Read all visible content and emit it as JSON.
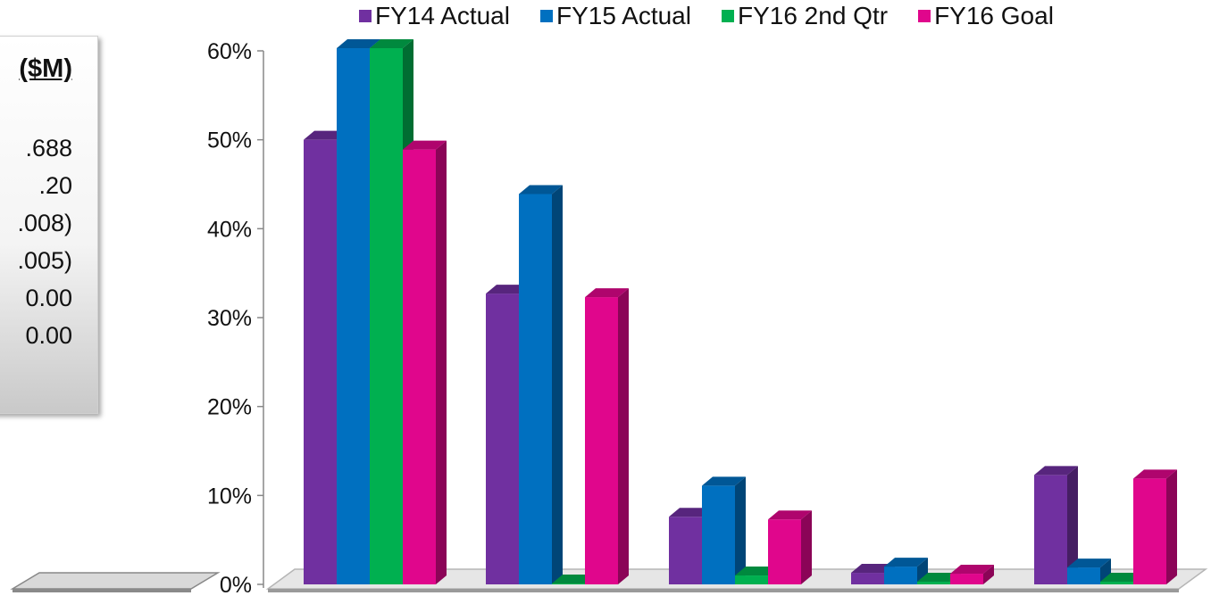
{
  "side_panel": {
    "header": "($M)",
    "values": [
      ".688",
      ".20",
      ".008)",
      ".005)",
      "0.00",
      "0.00"
    ]
  },
  "chart_data": {
    "type": "bar",
    "categories": [
      "",
      "",
      "",
      "",
      ""
    ],
    "series": [
      {
        "name": "FY14 Actual",
        "color": "#7030a0",
        "values": [
          50,
          32.7,
          7.6,
          1.3,
          12.3
        ]
      },
      {
        "name": "FY15 Actual",
        "color": "#0070c0",
        "values": [
          60.3,
          43.9,
          11.1,
          2.0,
          1.9
        ]
      },
      {
        "name": "FY16 2nd Qtr",
        "color": "#00b050",
        "values": [
          60.3,
          0.1,
          1.0,
          0.3,
          0.3
        ]
      },
      {
        "name": "FY16 Goal",
        "color": "#e0068c",
        "values": [
          48.9,
          32.3,
          7.3,
          1.2,
          11.9
        ]
      }
    ],
    "yticks": [
      "0%",
      "10%",
      "20%",
      "30%",
      "40%",
      "50%",
      "60%"
    ],
    "ylim": [
      0,
      60
    ],
    "legend_position": "top",
    "grid": false,
    "title": "",
    "xlabel": "",
    "ylabel": ""
  }
}
